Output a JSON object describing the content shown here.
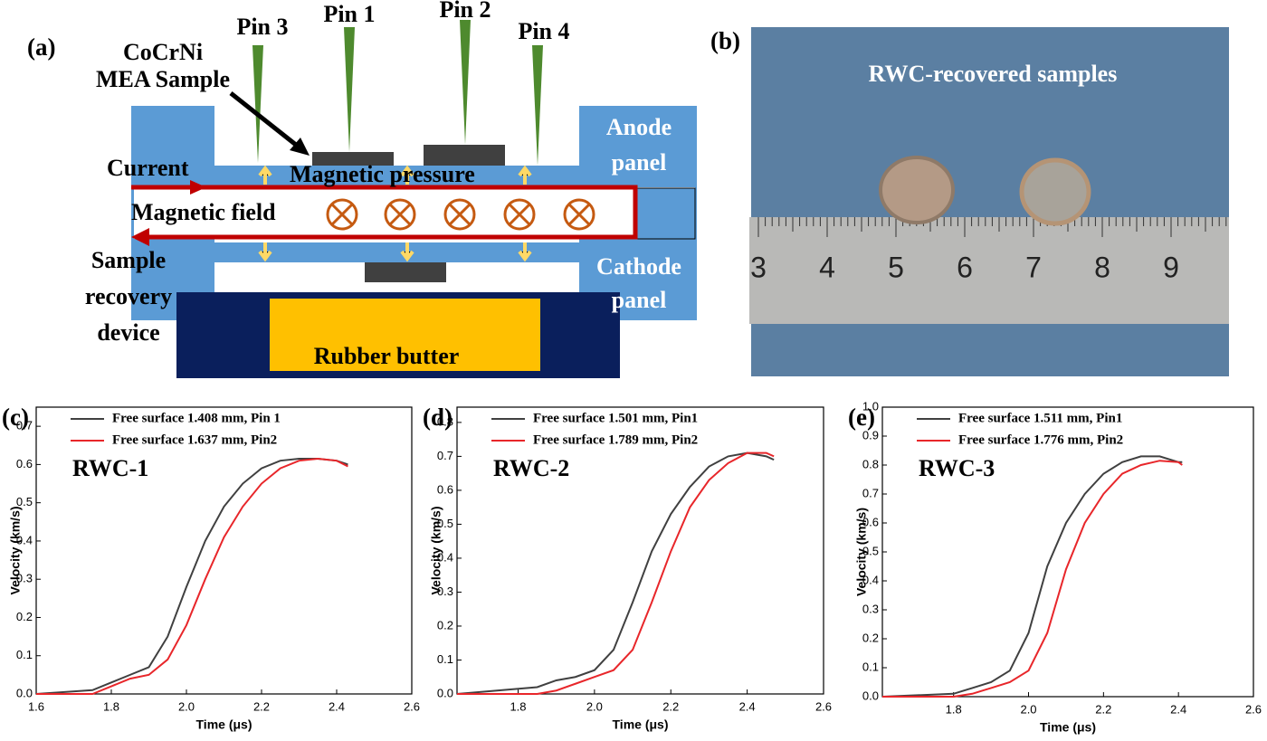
{
  "diagram": {
    "label": "(a)",
    "sample": [
      "CoCrNi",
      "MEA Sample"
    ],
    "pins": [
      "Pin 3",
      "Pin 1",
      "Pin 2",
      "Pin 4"
    ],
    "current": "Current",
    "pressure": "Magnetic pressure",
    "field": "Magnetic field",
    "device": [
      "Sample",
      "recovery",
      "device"
    ],
    "anode": [
      "Anode",
      "panel"
    ],
    "cathode": [
      "Cathode",
      "panel"
    ],
    "butter": "Rubber butter"
  },
  "photo": {
    "label": "(b)",
    "caption": "RWC-recovered samples",
    "ruler_labels": [
      "3",
      "4",
      "5",
      "6",
      "7",
      "8",
      "9"
    ]
  },
  "chart_data": [
    {
      "type": "line",
      "panel": "(c)",
      "annotation": "RWC-1",
      "xlabel": "Time (μs)",
      "ylabel": "Velocity (km/s)",
      "x": [
        1.6,
        1.75,
        1.8,
        1.85,
        1.9,
        1.95,
        2.0,
        2.05,
        2.1,
        2.15,
        2.2,
        2.25,
        2.3,
        2.35,
        2.4,
        2.43
      ],
      "series": [
        {
          "name": "Free surface 1.408 mm, Pin 1",
          "color": "#404040",
          "values": [
            0,
            0.01,
            0.03,
            0.05,
            0.07,
            0.15,
            0.28,
            0.4,
            0.49,
            0.55,
            0.59,
            0.61,
            0.615,
            0.615,
            0.61,
            0.6
          ]
        },
        {
          "name": "Free surface 1.637 mm, Pin2",
          "color": "#e8262a",
          "values": [
            0,
            0,
            0.02,
            0.04,
            0.05,
            0.09,
            0.18,
            0.3,
            0.41,
            0.49,
            0.55,
            0.59,
            0.61,
            0.615,
            0.61,
            0.595
          ]
        }
      ],
      "xlim": [
        1.6,
        2.6
      ],
      "xticks": [
        1.6,
        1.8,
        {
          "value": 2,
          "label": "2.0"
        },
        2.2,
        2.4,
        2.6
      ],
      "ylim": [
        0,
        0.75
      ],
      "yticks": [
        {
          "value": 0,
          "label": "0.0"
        },
        0.1,
        0.2,
        0.3,
        0.4,
        0.5,
        0.6,
        0.7
      ]
    },
    {
      "type": "line",
      "panel": "(d)",
      "annotation": "RWC-2",
      "xlabel": "Time (μs)",
      "ylabel": "Velocity (km/s)",
      "x": [
        1.64,
        1.85,
        1.9,
        1.95,
        2.0,
        2.05,
        2.1,
        2.15,
        2.2,
        2.25,
        2.3,
        2.35,
        2.4,
        2.45,
        2.47
      ],
      "series": [
        {
          "name": "Free surface 1.501 mm, Pin1",
          "color": "#404040",
          "values": [
            0,
            0.02,
            0.04,
            0.05,
            0.07,
            0.13,
            0.27,
            0.42,
            0.53,
            0.61,
            0.67,
            0.7,
            0.71,
            0.7,
            0.69
          ]
        },
        {
          "name": "Free surface 1.789 mm, Pin2",
          "color": "#e8262a",
          "values": [
            0,
            0,
            0.01,
            0.03,
            0.05,
            0.07,
            0.13,
            0.27,
            0.42,
            0.55,
            0.63,
            0.68,
            0.71,
            0.71,
            0.7
          ]
        }
      ],
      "xlim": [
        1.64,
        2.6
      ],
      "xticks": [
        1.8,
        {
          "value": 2,
          "label": "2.0"
        },
        2.2,
        2.4,
        2.6
      ],
      "ylim": [
        0,
        0.845
      ],
      "yticks": [
        {
          "value": 0,
          "label": "0.0"
        },
        0.1,
        0.2,
        0.3,
        0.4,
        0.5,
        0.6,
        0.7,
        0.8
      ]
    },
    {
      "type": "line",
      "panel": "(e)",
      "annotation": "RWC-3",
      "xlabel": "Time (μs)",
      "ylabel": "Velocity (km/s)",
      "x": [
        1.61,
        1.8,
        1.85,
        1.9,
        1.95,
        2.0,
        2.05,
        2.1,
        2.15,
        2.2,
        2.25,
        2.3,
        2.35,
        2.4,
        2.41
      ],
      "series": [
        {
          "name": "Free surface 1.511 mm, Pin1",
          "color": "#404040",
          "values": [
            0,
            0.01,
            0.03,
            0.05,
            0.09,
            0.22,
            0.45,
            0.6,
            0.7,
            0.77,
            0.81,
            0.83,
            0.83,
            0.81,
            0.81
          ]
        },
        {
          "name": "Free surface 1.776 mm, Pin2",
          "color": "#e8262a",
          "values": [
            0,
            0,
            0.01,
            0.03,
            0.05,
            0.09,
            0.22,
            0.44,
            0.6,
            0.7,
            0.77,
            0.8,
            0.815,
            0.81,
            0.8
          ]
        }
      ],
      "xlim": [
        1.61,
        2.6
      ],
      "xticks": [
        1.8,
        {
          "value": 2,
          "label": "2.0"
        },
        2.2,
        2.4,
        2.6
      ],
      "ylim": [
        0,
        1
      ],
      "yticks": [
        {
          "value": 0,
          "label": "0.0"
        },
        0.1,
        0.2,
        0.3,
        0.4,
        0.5,
        0.6,
        0.7,
        0.8,
        0.9,
        {
          "value": 1,
          "label": "1.0"
        }
      ]
    }
  ]
}
